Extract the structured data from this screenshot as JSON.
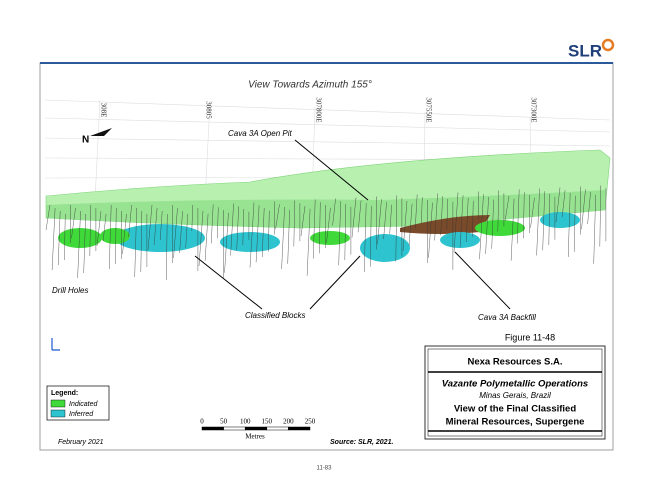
{
  "header": {
    "logo": "SLR"
  },
  "figure": {
    "title": "View Towards Azimuth 155°",
    "coordinates": [
      "308E",
      "30805",
      "307800E",
      "307550E",
      "307300E"
    ],
    "north": "N",
    "annotations": {
      "open_pit": "Cava 3A Open Pit",
      "drill_holes": "Drill Holes",
      "classified_blocks": "Classified Blocks",
      "backfill": "Cava 3A Backfill"
    },
    "legend": {
      "title": "Legend:",
      "items": [
        "Indicated",
        "Inferred"
      ]
    },
    "scale": {
      "ticks": [
        0,
        50,
        100,
        150,
        200,
        250
      ],
      "unit": "Metres"
    },
    "date": "February 2021",
    "source": "Source: SLR, 2021."
  },
  "caption": {
    "number": "Figure 11-48",
    "company": "Nexa Resources S.A.",
    "project": "Vazante Polymetallic Operations",
    "location": "Minas Gerais, Brazil",
    "title_line1": "View of the Final Classified",
    "title_line2": "Mineral Resources, Supergene"
  },
  "footer": {
    "page": "11-83"
  }
}
